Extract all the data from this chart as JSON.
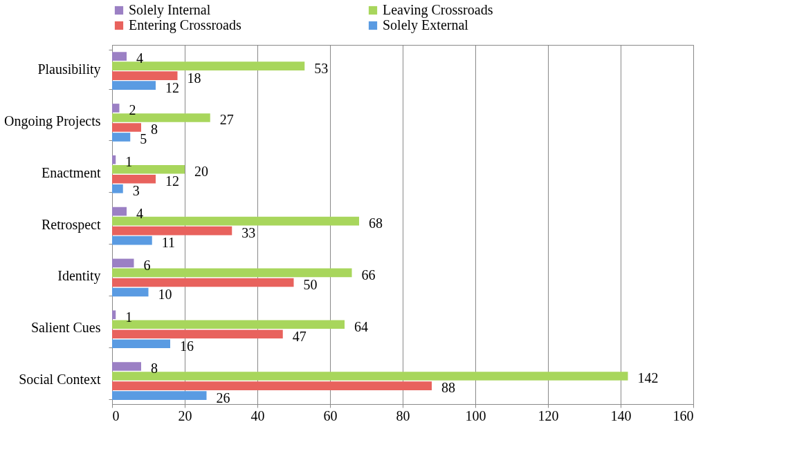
{
  "chart_data": {
    "type": "bar",
    "orientation": "horizontal",
    "categories": [
      "Plausibility",
      "Ongoing Projects",
      "Enactment",
      "Retrospect",
      "Identity",
      "Salient Cues",
      "Social Context"
    ],
    "series": [
      {
        "name": "Solely Internal",
        "color": "#9b80c4",
        "values": [
          4,
          2,
          1,
          4,
          6,
          1,
          8
        ]
      },
      {
        "name": "Leaving Crossroads",
        "color": "#a8d65c",
        "values": [
          53,
          27,
          20,
          68,
          66,
          64,
          142
        ]
      },
      {
        "name": "Entering Crossroads",
        "color": "#e8625d",
        "values": [
          18,
          8,
          12,
          33,
          50,
          47,
          88
        ]
      },
      {
        "name": "Solely External",
        "color": "#5a9be2",
        "values": [
          12,
          5,
          3,
          11,
          10,
          16,
          26
        ]
      }
    ],
    "xlim": [
      0,
      160
    ],
    "xticks": [
      0,
      20,
      40,
      60,
      80,
      100,
      120,
      140,
      160
    ],
    "grid": "x",
    "legend": "top",
    "data_labels": true
  }
}
